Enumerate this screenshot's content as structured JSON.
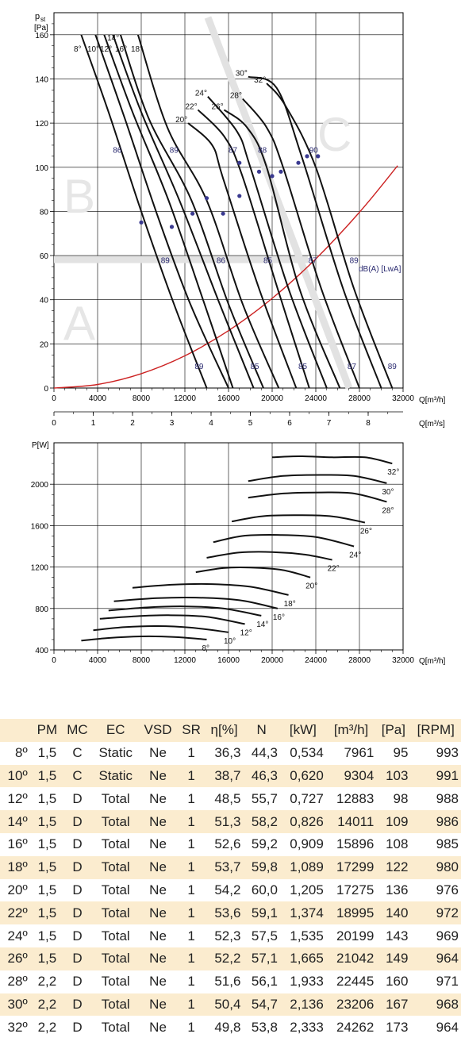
{
  "pressure_chart": {
    "y_axis_label": "p",
    "y_axis_label_sub": "st",
    "y_axis_unit": "[Pa]",
    "x_axis_label": "Q[m³/h]",
    "x2_axis_label": "Q[m³/s]",
    "region_letters": [
      "A",
      "B",
      "C"
    ],
    "db_label": "dB(A) [LwA]",
    "angle_labels": [
      "8°",
      "10°",
      "12°",
      "14°",
      "16°",
      "18°",
      "20°",
      "22°",
      "24°",
      "26°",
      "28°",
      "30°",
      "32°"
    ],
    "noise_labels": [
      {
        "text": "86",
        "q": 5800,
        "p": 108
      },
      {
        "text": "89",
        "q": 11000,
        "p": 108
      },
      {
        "text": "87",
        "q": 16400,
        "p": 108
      },
      {
        "text": "88",
        "q": 19100,
        "p": 108
      },
      {
        "text": "90",
        "q": 23800,
        "p": 108
      },
      {
        "text": "89",
        "q": 10200,
        "p": 58
      },
      {
        "text": "86",
        "q": 15300,
        "p": 58
      },
      {
        "text": "85",
        "q": 19600,
        "p": 58
      },
      {
        "text": "87",
        "q": 23700,
        "p": 58
      },
      {
        "text": "89",
        "q": 27500,
        "p": 58
      },
      {
        "text": "89",
        "q": 13300,
        "p": 10
      },
      {
        "text": "85",
        "q": 18400,
        "p": 10
      },
      {
        "text": "85",
        "q": 22800,
        "p": 10
      },
      {
        "text": "87",
        "q": 27300,
        "p": 10
      },
      {
        "text": "89",
        "q": 31000,
        "p": 10
      }
    ],
    "x_ticks": [
      "0",
      "4000",
      "8000",
      "12000",
      "16000",
      "20000",
      "24000",
      "28000",
      "32000"
    ],
    "x2_ticks": [
      "0",
      "1",
      "2",
      "3",
      "4",
      "5",
      "6",
      "7",
      "8"
    ],
    "y_ticks": [
      "0",
      "20",
      "40",
      "60",
      "80",
      "100",
      "120",
      "140",
      "160"
    ]
  },
  "power_chart": {
    "y_axis_label": "P[W]",
    "x_axis_label": "Q[m³/h]",
    "x_ticks": [
      "0",
      "4000",
      "8000",
      "12000",
      "16000",
      "20000",
      "24000",
      "28000",
      "32000"
    ],
    "y_ticks": [
      "400",
      "800",
      "1200",
      "1600",
      "2000"
    ],
    "angle_labels": [
      "8°",
      "10°",
      "12°",
      "14°",
      "16°",
      "18°",
      "20°",
      "22°",
      "24°",
      "26°",
      "28°",
      "30°",
      "32°"
    ]
  },
  "table": {
    "headers": [
      "",
      "PM",
      "MC",
      "EC",
      "VSD",
      "SR",
      "η[%]",
      "N",
      "[kW]",
      "[m³/h]",
      "[Pa]",
      "[RPM]"
    ],
    "rows": [
      [
        "8º",
        "1,5",
        "C",
        "Static",
        "Ne",
        "1",
        "36,3",
        "44,3",
        "0,534",
        "7961",
        "95",
        "993"
      ],
      [
        "10º",
        "1,5",
        "C",
        "Static",
        "Ne",
        "1",
        "38,7",
        "46,3",
        "0,620",
        "9304",
        "103",
        "991"
      ],
      [
        "12º",
        "1,5",
        "D",
        "Total",
        "Ne",
        "1",
        "48,5",
        "55,7",
        "0,727",
        "12883",
        "98",
        "988"
      ],
      [
        "14º",
        "1,5",
        "D",
        "Total",
        "Ne",
        "1",
        "51,3",
        "58,2",
        "0,826",
        "14011",
        "109",
        "986"
      ],
      [
        "16º",
        "1,5",
        "D",
        "Total",
        "Ne",
        "1",
        "52,6",
        "59,2",
        "0,909",
        "15896",
        "108",
        "985"
      ],
      [
        "18º",
        "1,5",
        "D",
        "Total",
        "Ne",
        "1",
        "53,7",
        "59,8",
        "1,089",
        "17299",
        "122",
        "980"
      ],
      [
        "20º",
        "1,5",
        "D",
        "Total",
        "Ne",
        "1",
        "54,2",
        "60,0",
        "1,205",
        "17275",
        "136",
        "976"
      ],
      [
        "22º",
        "1,5",
        "D",
        "Total",
        "Ne",
        "1",
        "53,6",
        "59,1",
        "1,374",
        "18995",
        "140",
        "972"
      ],
      [
        "24º",
        "1,5",
        "D",
        "Total",
        "Ne",
        "1",
        "52,3",
        "57,5",
        "1,535",
        "20199",
        "143",
        "969"
      ],
      [
        "26º",
        "1,5",
        "D",
        "Total",
        "Ne",
        "1",
        "52,2",
        "57,1",
        "1,665",
        "21042",
        "149",
        "964"
      ],
      [
        "28º",
        "2,2",
        "D",
        "Total",
        "Ne",
        "1",
        "51,6",
        "56,1",
        "1,933",
        "22445",
        "160",
        "971"
      ],
      [
        "30º",
        "2,2",
        "D",
        "Total",
        "Ne",
        "1",
        "50,4",
        "54,7",
        "2,136",
        "23206",
        "167",
        "968"
      ],
      [
        "32º",
        "2,2",
        "D",
        "Total",
        "Ne",
        "1",
        "49,8",
        "53,8",
        "2,333",
        "24262",
        "173",
        "964"
      ]
    ]
  },
  "chart_data": [
    {
      "type": "line",
      "xlim": [
        0,
        32000
      ],
      "ylim": [
        0,
        170
      ],
      "grid": true,
      "system_curve": {
        "color": "#cc2222",
        "x": [
          0,
          4000,
          8000,
          12000,
          16000,
          20000,
          24000,
          28000,
          31500
        ],
        "y": [
          0,
          1.6,
          6.5,
          14.6,
          26,
          40.6,
          58.5,
          79.6,
          100.7
        ]
      },
      "series": [
        {
          "name": "8°",
          "x": [
            2500,
            5000,
            8000,
            11000,
            14000
          ],
          "y": [
            160,
            125,
            80,
            38,
            0
          ]
        },
        {
          "name": "10°",
          "x": [
            3800,
            6500,
            9500,
            12500,
            16000
          ],
          "y": [
            160,
            122,
            78,
            38,
            0
          ]
        },
        {
          "name": "12°",
          "x": [
            4600,
            7200,
            10500,
            13800,
            16400
          ],
          "y": [
            160,
            125,
            85,
            38,
            0
          ]
        },
        {
          "name": "14°",
          "x": [
            5400,
            8000,
            11500,
            15200,
            18300
          ],
          "y": [
            160,
            125,
            85,
            38,
            0
          ]
        },
        {
          "name": "16°",
          "x": [
            6100,
            8700,
            12600,
            16000,
            19200
          ],
          "y": [
            160,
            122,
            85,
            38,
            0
          ]
        },
        {
          "name": "18°",
          "x": [
            7700,
            10400,
            14000,
            17300,
            20600
          ],
          "y": [
            160,
            118,
            85,
            38,
            0
          ]
        },
        {
          "name": "20°",
          "x": [
            12300,
            14500,
            15500,
            18800,
            22200
          ],
          "y": [
            120,
            110,
            95,
            45,
            0
          ]
        },
        {
          "name": "22°",
          "x": [
            13200,
            15600,
            17200,
            20500,
            23400
          ],
          "y": [
            126,
            114,
            97,
            45,
            0
          ]
        },
        {
          "name": "24°",
          "x": [
            14100,
            16800,
            18000,
            21500,
            25000
          ],
          "y": [
            132,
            116,
            100,
            45,
            0
          ]
        },
        {
          "name": "26°",
          "x": [
            15600,
            17700,
            19500,
            22500,
            26200
          ],
          "y": [
            126,
            118,
            100,
            45,
            0
          ]
        },
        {
          "name": "28°",
          "x": [
            17300,
            19500,
            21000,
            24500,
            28000
          ],
          "y": [
            131,
            118,
            100,
            45,
            0
          ]
        },
        {
          "name": "30°",
          "x": [
            17800,
            20400,
            22700,
            26500,
            30000
          ],
          "y": [
            141,
            136,
            105,
            45,
            0
          ]
        },
        {
          "name": "32°",
          "x": [
            19500,
            21200,
            24000,
            27500,
            31000
          ],
          "y": [
            138,
            128,
            100,
            45,
            0
          ]
        }
      ]
    },
    {
      "type": "line",
      "xlim": [
        0,
        32000
      ],
      "ylim": [
        400,
        2400
      ],
      "grid": true,
      "series": [
        {
          "name": "8°",
          "x": [
            2500,
            5000,
            8000,
            11000,
            14000
          ],
          "y": [
            490,
            515,
            530,
            525,
            500
          ]
        },
        {
          "name": "10°",
          "x": [
            3600,
            6500,
            9500,
            12500,
            16000
          ],
          "y": [
            590,
            620,
            630,
            615,
            570
          ]
        },
        {
          "name": "12°",
          "x": [
            4200,
            7500,
            10500,
            14000,
            17500
          ],
          "y": [
            700,
            725,
            735,
            720,
            650
          ]
        },
        {
          "name": "14°",
          "x": [
            5000,
            8500,
            12000,
            15500,
            19000
          ],
          "y": [
            780,
            810,
            820,
            800,
            730
          ]
        },
        {
          "name": "16°",
          "x": [
            5500,
            9500,
            13000,
            17000,
            20500
          ],
          "y": [
            870,
            900,
            905,
            880,
            800
          ]
        },
        {
          "name": "18°",
          "x": [
            7200,
            11000,
            14500,
            18000,
            21500
          ],
          "y": [
            1000,
            1030,
            1035,
            1010,
            930
          ]
        },
        {
          "name": "20°",
          "x": [
            13000,
            15500,
            18000,
            21000,
            23500
          ],
          "y": [
            1150,
            1190,
            1195,
            1170,
            1100
          ]
        },
        {
          "name": "22°",
          "x": [
            14000,
            17000,
            20000,
            23000,
            25500
          ],
          "y": [
            1290,
            1340,
            1345,
            1320,
            1270
          ]
        },
        {
          "name": "24°",
          "x": [
            14600,
            17300,
            20500,
            24000,
            27500
          ],
          "y": [
            1440,
            1500,
            1510,
            1490,
            1400
          ]
        },
        {
          "name": "26°",
          "x": [
            16300,
            19000,
            22000,
            25500,
            28500
          ],
          "y": [
            1640,
            1690,
            1700,
            1690,
            1630
          ]
        },
        {
          "name": "28°",
          "x": [
            17800,
            21000,
            24500,
            27500,
            30500
          ],
          "y": [
            1870,
            1910,
            1920,
            1910,
            1830
          ]
        },
        {
          "name": "30°",
          "x": [
            17800,
            21000,
            24500,
            27500,
            30500
          ],
          "y": [
            2030,
            2080,
            2090,
            2080,
            2010
          ]
        },
        {
          "name": "32°",
          "x": [
            20000,
            22500,
            25500,
            28500,
            31000
          ],
          "y": [
            2260,
            2270,
            2260,
            2260,
            2200
          ]
        }
      ]
    }
  ]
}
